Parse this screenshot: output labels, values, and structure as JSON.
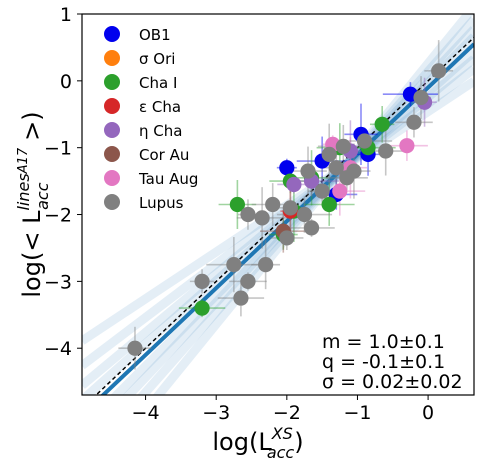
{
  "chart_data": {
    "type": "scatter",
    "title": "",
    "xlabel": "log(L_acc^XS)",
    "ylabel": "log(< L_acc^lines A17 >)",
    "xlim": [
      -4.9,
      0.65
    ],
    "ylim": [
      -4.7,
      1.0
    ],
    "xticks": [
      -4,
      -3,
      -2,
      -1,
      0
    ],
    "yticks": [
      1,
      0,
      -1,
      -2,
      -3,
      -4
    ],
    "grid": false,
    "legend_position": "top-left",
    "series": [
      {
        "name": "OB1",
        "color": "#0000ee",
        "points": [
          [
            -2.0,
            -1.3
          ],
          [
            -1.5,
            -1.2
          ],
          [
            -1.3,
            -1.7
          ],
          [
            -0.95,
            -0.8
          ],
          [
            -0.85,
            -1.1
          ],
          [
            -0.25,
            -0.2
          ]
        ]
      },
      {
        "name": "σ Ori",
        "color": "#ff7f0e",
        "points": []
      },
      {
        "name": "Cha I",
        "color": "#2ca02c",
        "points": [
          [
            -3.2,
            -3.4
          ],
          [
            -2.7,
            -1.85
          ],
          [
            -2.05,
            -2.3
          ],
          [
            -1.9,
            -1.95
          ],
          [
            -1.4,
            -1.85
          ],
          [
            -1.95,
            -1.5
          ],
          [
            -1.65,
            -1.45
          ],
          [
            -0.65,
            -0.65
          ],
          [
            -0.85,
            -1.0
          ],
          [
            -1.25,
            -1.0
          ]
        ]
      },
      {
        "name": "ε Cha",
        "color": "#d62728",
        "points": [
          [
            -1.95,
            -1.95
          ]
        ]
      },
      {
        "name": "η Cha",
        "color": "#9467bd",
        "points": [
          [
            -1.9,
            -1.55
          ],
          [
            -0.05,
            -0.32
          ],
          [
            -1.65,
            -1.5
          ],
          [
            -1.1,
            -1.05
          ]
        ]
      },
      {
        "name": "Cor Au",
        "color": "#8c564b",
        "points": [
          [
            -2.05,
            -2.25
          ]
        ]
      },
      {
        "name": "Tau Aug",
        "color": "#e377c2",
        "points": [
          [
            -1.35,
            -0.95
          ],
          [
            -1.25,
            -1.65
          ],
          [
            -0.3,
            -0.97
          ],
          [
            -1.1,
            -1.3
          ]
        ]
      },
      {
        "name": "Lupus",
        "color": "#808080",
        "points": [
          [
            -4.15,
            -4.0
          ],
          [
            -3.2,
            -3.0
          ],
          [
            -2.75,
            -2.75
          ],
          [
            -2.65,
            -3.25
          ],
          [
            -2.55,
            -3.0
          ],
          [
            -2.3,
            -2.75
          ],
          [
            -2.55,
            -2.0
          ],
          [
            -2.35,
            -2.05
          ],
          [
            -2.2,
            -1.85
          ],
          [
            -2.0,
            -2.35
          ],
          [
            -1.95,
            -1.9
          ],
          [
            -1.75,
            -2.0
          ],
          [
            -1.65,
            -2.2
          ],
          [
            -1.7,
            -1.35
          ],
          [
            -1.5,
            -1.65
          ],
          [
            -1.4,
            -1.1
          ],
          [
            -1.2,
            -0.98
          ],
          [
            -1.15,
            -1.45
          ],
          [
            -1.05,
            -1.35
          ],
          [
            -1.3,
            -1.3
          ],
          [
            -0.9,
            -0.9
          ],
          [
            -0.6,
            -1.05
          ],
          [
            -0.2,
            -0.62
          ],
          [
            0.15,
            0.15
          ],
          [
            -0.1,
            -0.25
          ]
        ]
      }
    ],
    "fit_line": {
      "slope": 1.0,
      "intercept": -0.1,
      "color": "#1f77b4"
    },
    "identity_line": {
      "slope": 1.0,
      "intercept": 0.0,
      "color": "#000000",
      "style": "dashed"
    },
    "annotations": [
      "m = 1.0±0.1",
      "q = -0.1±0.1",
      "σ = 0.02±0.02"
    ]
  }
}
